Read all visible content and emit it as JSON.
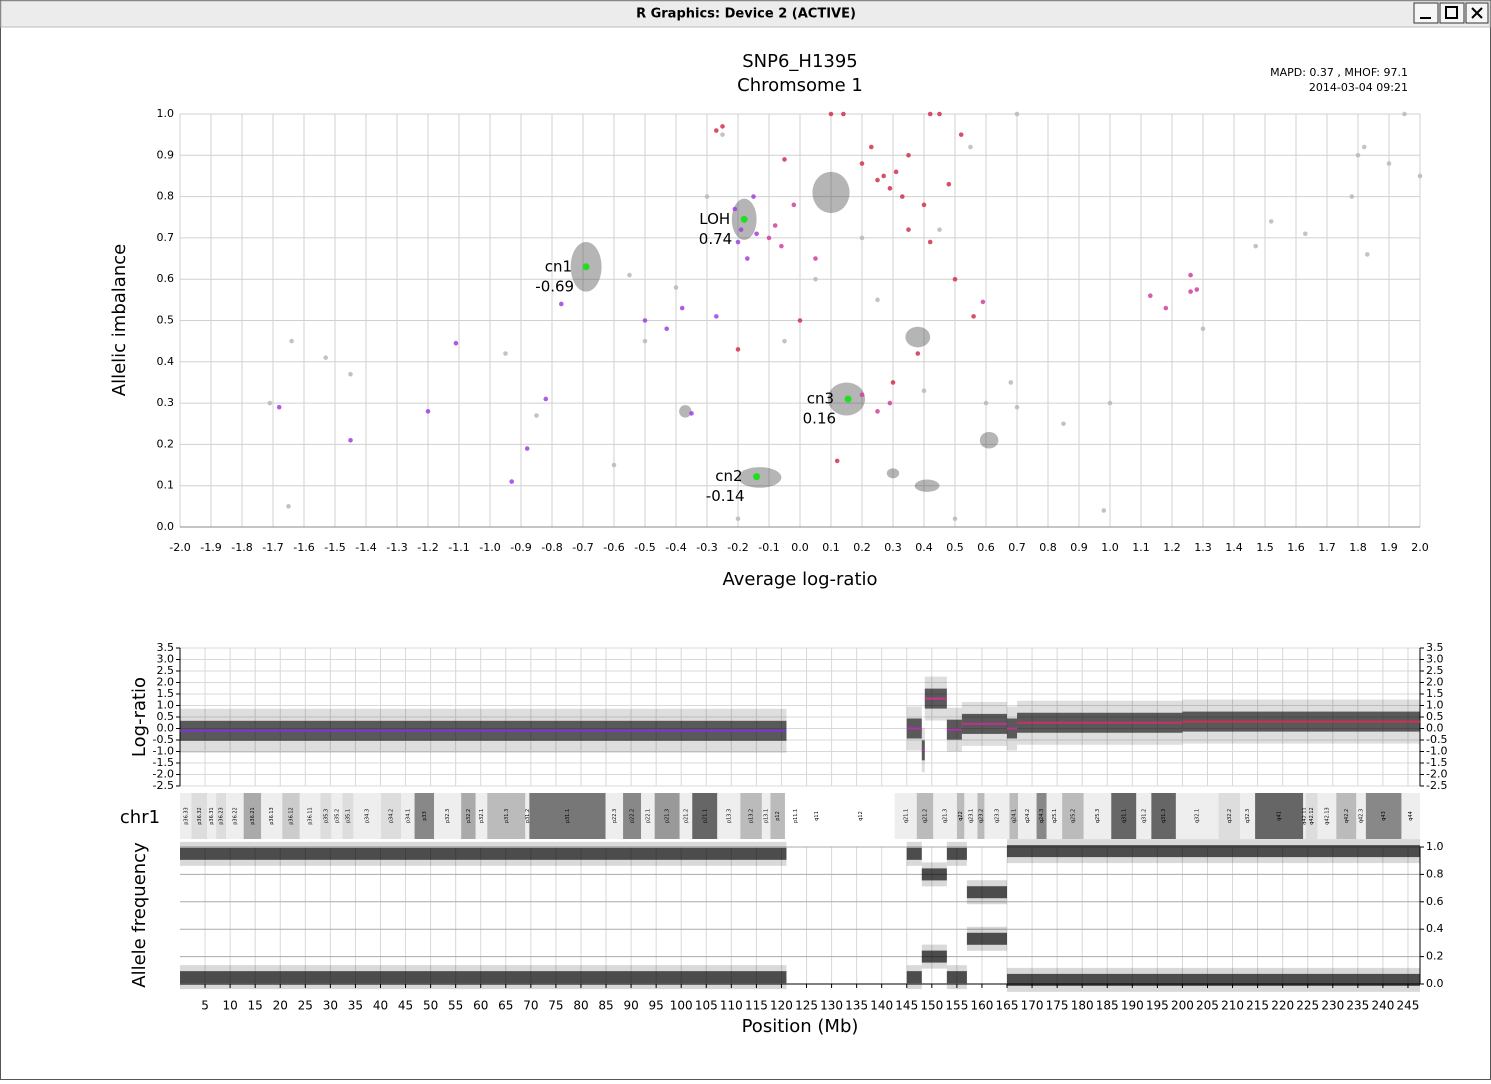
{
  "window": {
    "title": "R Graphics: Device 2 (ACTIVE)"
  },
  "chart_data": [
    {
      "type": "scatter",
      "title": "SNP6_H1395",
      "subtitle": "Chromsome 1",
      "annotations": [
        "MAPD:  0.37 , MHOF:  97.1",
        "2014-03-04 09:21"
      ],
      "x_label": "Average log-ratio",
      "y_label": "Allelic imbalance",
      "xlim": [
        -2,
        2
      ],
      "ylim": [
        0,
        1
      ],
      "grid": true,
      "xticks": [
        {
          "value": -2,
          "label": "-2.0"
        },
        -1.9,
        -1.8,
        -1.7,
        -1.6,
        -1.5,
        -1.4,
        -1.3,
        -1.2,
        -1.1,
        {
          "value": -1,
          "label": "-1.0"
        },
        -0.9,
        -0.8,
        -0.7,
        -0.6,
        -0.5,
        -0.4,
        -0.3,
        -0.2,
        -0.1,
        {
          "value": 0,
          "label": "0.0"
        },
        0.1,
        0.2,
        0.3,
        0.4,
        0.5,
        0.6,
        0.7,
        0.8,
        0.9,
        {
          "value": 1,
          "label": "1.0"
        },
        1.1,
        1.2,
        1.3,
        1.4,
        1.5,
        1.6,
        1.7,
        1.8,
        1.9,
        {
          "value": 2,
          "label": "2.0"
        }
      ],
      "yticks": [
        {
          "value": 0,
          "label": "0.0"
        },
        0.1,
        0.2,
        0.3,
        0.4,
        0.5,
        0.6,
        0.7,
        0.8,
        0.9,
        {
          "value": 1,
          "label": "1.0"
        }
      ],
      "clouds": [
        {
          "x": -0.69,
          "y": 0.63,
          "rx": 0.05,
          "ry": 0.06
        },
        {
          "x": -0.18,
          "y": 0.745,
          "rx": 0.04,
          "ry": 0.05
        },
        {
          "x": -0.13,
          "y": 0.12,
          "rx": 0.07,
          "ry": 0.025
        },
        {
          "x": 0.15,
          "y": 0.31,
          "rx": 0.06,
          "ry": 0.04
        },
        {
          "x": 0.1,
          "y": 0.81,
          "rx": 0.06,
          "ry": 0.05
        },
        {
          "x": 0.38,
          "y": 0.46,
          "rx": 0.04,
          "ry": 0.025
        },
        {
          "x": 0.41,
          "y": 0.1,
          "rx": 0.04,
          "ry": 0.015
        },
        {
          "x": 0.61,
          "y": 0.21,
          "rx": 0.03,
          "ry": 0.02
        },
        {
          "x": -0.37,
          "y": 0.28,
          "rx": 0.02,
          "ry": 0.015
        },
        {
          "x": 0.3,
          "y": 0.13,
          "rx": 0.02,
          "ry": 0.012
        }
      ],
      "series": [
        {
          "color": "#b8b8b8",
          "x": [
            -1.64,
            -1.65,
            -1.53,
            -1.45,
            -1.71,
            -0.4,
            -0.5,
            -0.55,
            -0.3,
            -0.25,
            0.05,
            0.2,
            0.45,
            0.6,
            0.68,
            0.7,
            0.85,
            1,
            1.3,
            1.52,
            1.78,
            1.8,
            1.82,
            1.9,
            1.95,
            2,
            1.63,
            1.83,
            -0.95,
            -0.6,
            -0.2,
            0.5,
            0.98,
            -0.85,
            -0.05,
            0.25,
            0.55,
            0.7,
            1.47,
            0.4
          ],
          "values": [
            0.45,
            0.05,
            0.41,
            0.37,
            0.3,
            0.58,
            0.45,
            0.61,
            0.8,
            0.95,
            0.6,
            0.7,
            0.72,
            0.3,
            0.35,
            0.29,
            0.25,
            0.3,
            0.48,
            0.74,
            0.8,
            0.9,
            0.92,
            0.88,
            1,
            0.85,
            0.71,
            0.66,
            0.42,
            0.15,
            0.02,
            0.02,
            0.04,
            0.27,
            0.45,
            0.55,
            0.92,
            1,
            0.68,
            0.33
          ]
        },
        {
          "color": "#a040e0",
          "x": [
            -1.68,
            -1.45,
            -1.11,
            -1.2,
            -0.93,
            -0.88,
            -0.82,
            -0.77,
            -0.5,
            -0.43,
            -0.38,
            -0.35,
            -0.27,
            -0.2,
            -0.15,
            -0.21,
            -0.17,
            -0.19,
            -0.14
          ],
          "values": [
            0.29,
            0.21,
            0.445,
            0.28,
            0.11,
            0.19,
            0.31,
            0.54,
            0.5,
            0.48,
            0.53,
            0.275,
            0.51,
            0.69,
            0.8,
            0.77,
            0.65,
            0.72,
            0.71
          ]
        },
        {
          "color": "#d040a0",
          "x": [
            -0.1,
            -0.06,
            -0.02,
            0.05,
            0.2,
            0.25,
            0.29,
            1.13,
            1.18,
            1.26,
            1.26,
            1.28,
            0.59,
            -0.08
          ],
          "values": [
            0.7,
            0.68,
            0.78,
            0.65,
            0.32,
            0.28,
            0.3,
            0.56,
            0.53,
            0.61,
            0.57,
            0.575,
            0.545,
            0.73
          ]
        },
        {
          "color": "#d03050",
          "x": [
            -0.27,
            -0.25,
            -0.05,
            0.1,
            0.14,
            0.2,
            0.25,
            0.27,
            0.29,
            0.31,
            0.33,
            0.35,
            0.4,
            0.42,
            0.45,
            0.48,
            0.42,
            0.56,
            0.5,
            0.3,
            0.38,
            0,
            -0.2,
            0.12,
            0.35,
            0.23,
            0.52
          ],
          "values": [
            0.96,
            0.97,
            0.89,
            1,
            1,
            0.88,
            0.84,
            0.85,
            0.82,
            0.86,
            0.8,
            0.9,
            0.78,
            1,
            1,
            0.83,
            0.69,
            0.51,
            0.6,
            0.35,
            0.42,
            0.5,
            0.43,
            0.16,
            0.72,
            0.92,
            0.95
          ]
        }
      ],
      "clusters": [
        {
          "name": "cn1",
          "x": -0.69,
          "y": 0.63,
          "value": -0.69
        },
        {
          "name": "LOH",
          "x": -0.18,
          "y": 0.745,
          "value": 0.74
        },
        {
          "name": "cn3",
          "x": 0.155,
          "y": 0.31,
          "value": 0.16
        },
        {
          "name": "cn2",
          "x": -0.14,
          "y": 0.122,
          "value": -0.14
        }
      ]
    },
    {
      "type": "segments",
      "y_label": "Log-ratio",
      "xlim": [
        0,
        247.4
      ],
      "ylim": [
        -2.5,
        3.5
      ],
      "grid": true,
      "yticks": [
        -2.5,
        {
          "value": -2,
          "label": "-2.0"
        },
        -1.5,
        {
          "value": -1,
          "label": "-1.0"
        },
        -0.5,
        {
          "value": 0,
          "label": "0.0"
        },
        0.5,
        {
          "value": 1,
          "label": "1.0"
        },
        1.5,
        {
          "value": 2,
          "label": "2.0"
        },
        2.5,
        {
          "value": 3,
          "label": "3.0"
        },
        3.5
      ],
      "segments": [
        {
          "start": 0,
          "end": 121,
          "value": -0.1,
          "color": "#8030e0"
        },
        {
          "start": 145,
          "end": 148,
          "value": 0,
          "color": "#b030b0"
        },
        {
          "start": 148,
          "end": 148.6,
          "value": -0.95,
          "color": "#b030b0"
        },
        {
          "start": 148.6,
          "end": 153,
          "value": 1.3,
          "color": "#d03090"
        },
        {
          "start": 153,
          "end": 156,
          "value": -0.05,
          "color": "#b030b0"
        },
        {
          "start": 156,
          "end": 165,
          "value": 0.2,
          "color": "#c03090"
        },
        {
          "start": 165,
          "end": 167,
          "value": 0,
          "color": "#c03090"
        },
        {
          "start": 167,
          "end": 200,
          "value": 0.25,
          "color": "#c8306a"
        },
        {
          "start": 200,
          "end": 247.4,
          "value": 0.3,
          "color": "#d03050"
        }
      ]
    },
    {
      "type": "ideogram",
      "label": "chr1",
      "xlim": [
        0,
        247.4
      ],
      "bands": [
        {
          "name": "p36.33",
          "start": 0,
          "end": 2.3,
          "color": "#eeeeee"
        },
        {
          "name": "p36.32",
          "start": 2.3,
          "end": 5.4,
          "color": "#dddddd"
        },
        {
          "name": "p36.31",
          "start": 5.4,
          "end": 7.2,
          "color": "#eeeeee"
        },
        {
          "name": "p36.23",
          "start": 7.2,
          "end": 9.2,
          "color": "#dddddd"
        },
        {
          "name": "p36.22",
          "start": 9.2,
          "end": 12.7,
          "color": "#eeeeee"
        },
        {
          "name": "p36.21",
          "start": 12.7,
          "end": 16.2,
          "color": "#aaaaaa"
        },
        {
          "name": "p36.13",
          "start": 16.2,
          "end": 20.4,
          "color": "#eeeeee"
        },
        {
          "name": "p36.12",
          "start": 20.4,
          "end": 23.9,
          "color": "#cccccc"
        },
        {
          "name": "p36.11",
          "start": 23.9,
          "end": 28,
          "color": "#eeeeee"
        },
        {
          "name": "p35.3",
          "start": 28,
          "end": 30.2,
          "color": "#dddddd"
        },
        {
          "name": "p35.2",
          "start": 30.2,
          "end": 32.4,
          "color": "#eeeeee"
        },
        {
          "name": "p35.1",
          "start": 32.4,
          "end": 34.6,
          "color": "#dddddd"
        },
        {
          "name": "p34.3",
          "start": 34.6,
          "end": 40.1,
          "color": "#eeeeee"
        },
        {
          "name": "p34.2",
          "start": 40.1,
          "end": 44.1,
          "color": "#dddddd"
        },
        {
          "name": "p34.1",
          "start": 44.1,
          "end": 46.8,
          "color": "#eeeeee"
        },
        {
          "name": "p33",
          "start": 46.8,
          "end": 50.7,
          "color": "#888888"
        },
        {
          "name": "p32.3",
          "start": 50.7,
          "end": 56.1,
          "color": "#eeeeee"
        },
        {
          "name": "p32.2",
          "start": 56.1,
          "end": 59,
          "color": "#aaaaaa"
        },
        {
          "name": "p32.1",
          "start": 59,
          "end": 61.3,
          "color": "#eeeeee"
        },
        {
          "name": "p31.3",
          "start": 61.3,
          "end": 68.9,
          "color": "#bbbbbb"
        },
        {
          "name": "p31.2",
          "start": 68.9,
          "end": 69.7,
          "color": "#eeeeee"
        },
        {
          "name": "p31.1",
          "start": 69.7,
          "end": 84.9,
          "color": "#777777"
        },
        {
          "name": "p22.3",
          "start": 84.9,
          "end": 88.4,
          "color": "#eeeeee"
        },
        {
          "name": "p22.2",
          "start": 88.4,
          "end": 92,
          "color": "#888888"
        },
        {
          "name": "p22.1",
          "start": 92,
          "end": 94.7,
          "color": "#eeeeee"
        },
        {
          "name": "p21.3",
          "start": 94.7,
          "end": 99.7,
          "color": "#999999"
        },
        {
          "name": "p21.2",
          "start": 99.7,
          "end": 102.2,
          "color": "#eeeeee"
        },
        {
          "name": "p21.1",
          "start": 102.2,
          "end": 107.2,
          "color": "#666666"
        },
        {
          "name": "p13.3",
          "start": 107.2,
          "end": 111.8,
          "color": "#eeeeee"
        },
        {
          "name": "p13.2",
          "start": 111.8,
          "end": 116.1,
          "color": "#bbbbbb"
        },
        {
          "name": "p13.1",
          "start": 116.1,
          "end": 117.8,
          "color": "#eeeeee"
        },
        {
          "name": "p12",
          "start": 117.8,
          "end": 120.7,
          "color": "#bbbbbb"
        },
        {
          "name": "p11.1",
          "start": 120.7,
          "end": 125,
          "color": "#ffffff"
        },
        {
          "name": "q11",
          "start": 125,
          "end": 128.9,
          "color": "#ffffff"
        },
        {
          "name": "q12",
          "start": 128.9,
          "end": 142.6,
          "color": "#ffffff"
        },
        {
          "name": "q21.1",
          "start": 142.6,
          "end": 147,
          "color": "#eeeeee"
        },
        {
          "name": "q21.2",
          "start": 147,
          "end": 150.3,
          "color": "#bbbbbb"
        },
        {
          "name": "q21.3",
          "start": 150.3,
          "end": 155,
          "color": "#eeeeee"
        },
        {
          "name": "q22",
          "start": 155,
          "end": 156.5,
          "color": "#bbbbbb"
        },
        {
          "name": "q23.1",
          "start": 156.5,
          "end": 159.1,
          "color": "#eeeeee"
        },
        {
          "name": "q23.2",
          "start": 159.1,
          "end": 160.5,
          "color": "#bbbbbb"
        },
        {
          "name": "q23.3",
          "start": 160.5,
          "end": 165.5,
          "color": "#eeeeee"
        },
        {
          "name": "q24.1",
          "start": 165.5,
          "end": 167.2,
          "color": "#bbbbbb"
        },
        {
          "name": "q24.2",
          "start": 167.2,
          "end": 170.9,
          "color": "#eeeeee"
        },
        {
          "name": "q24.3",
          "start": 170.9,
          "end": 172.9,
          "color": "#888888"
        },
        {
          "name": "q25.1",
          "start": 172.9,
          "end": 176,
          "color": "#eeeeee"
        },
        {
          "name": "q25.2",
          "start": 176,
          "end": 180.3,
          "color": "#bbbbbb"
        },
        {
          "name": "q25.3",
          "start": 180.3,
          "end": 185.8,
          "color": "#eeeeee"
        },
        {
          "name": "q31.1",
          "start": 185.8,
          "end": 190.8,
          "color": "#666666"
        },
        {
          "name": "q31.2",
          "start": 190.8,
          "end": 193.8,
          "color": "#eeeeee"
        },
        {
          "name": "q31.3",
          "start": 193.8,
          "end": 198.7,
          "color": "#666666"
        },
        {
          "name": "q32.1",
          "start": 198.7,
          "end": 207.2,
          "color": "#eeeeee"
        },
        {
          "name": "q32.2",
          "start": 207.2,
          "end": 211.5,
          "color": "#dddddd"
        },
        {
          "name": "q32.3",
          "start": 211.5,
          "end": 214.5,
          "color": "#eeeeee"
        },
        {
          "name": "q41",
          "start": 214.5,
          "end": 224.1,
          "color": "#666666"
        },
        {
          "name": "q42.11",
          "start": 224.1,
          "end": 224.6,
          "color": "#eeeeee"
        },
        {
          "name": "q42.12",
          "start": 224.6,
          "end": 227,
          "color": "#dddddd"
        },
        {
          "name": "q42.13",
          "start": 227,
          "end": 230.7,
          "color": "#eeeeee"
        },
        {
          "name": "q42.2",
          "start": 230.7,
          "end": 234.7,
          "color": "#bbbbbb"
        },
        {
          "name": "q42.3",
          "start": 234.7,
          "end": 236.6,
          "color": "#eeeeee"
        },
        {
          "name": "q43",
          "start": 236.6,
          "end": 243.7,
          "color": "#888888"
        },
        {
          "name": "q44",
          "start": 243.7,
          "end": 247.4,
          "color": "#eeeeee"
        }
      ]
    },
    {
      "type": "bands",
      "y_label": "Allele frequency",
      "x_label": "Position (Mb)",
      "xlim": [
        0,
        247.4
      ],
      "ylim": [
        0,
        1
      ],
      "grid": true,
      "yticks": [
        {
          "value": 0,
          "label": "0.0"
        },
        0.2,
        0.4,
        0.6,
        0.8,
        {
          "value": 1,
          "label": "1.0"
        }
      ],
      "xticks": [
        5,
        10,
        15,
        20,
        25,
        30,
        35,
        40,
        45,
        50,
        55,
        60,
        65,
        70,
        75,
        80,
        85,
        90,
        95,
        100,
        105,
        110,
        115,
        120,
        125,
        130,
        135,
        140,
        145,
        150,
        155,
        160,
        165,
        170,
        175,
        180,
        185,
        190,
        195,
        200,
        205,
        210,
        215,
        220,
        225,
        230,
        235,
        240,
        245
      ],
      "bands": [
        {
          "start": 0,
          "end": 121,
          "value": 0.05
        },
        {
          "start": 0,
          "end": 121,
          "value": 0.95
        },
        {
          "start": 145,
          "end": 148,
          "value": 0.05
        },
        {
          "start": 145,
          "end": 148,
          "value": 0.95
        },
        {
          "start": 148,
          "end": 153,
          "value": 0.2
        },
        {
          "start": 148,
          "end": 153,
          "value": 0.8
        },
        {
          "start": 153,
          "end": 157,
          "value": 0.05
        },
        {
          "start": 153,
          "end": 157,
          "value": 0.95
        },
        {
          "start": 157,
          "end": 165,
          "value": 0.33
        },
        {
          "start": 157,
          "end": 165,
          "value": 0.67
        },
        {
          "start": 165,
          "end": 247.4,
          "value": 0.03
        },
        {
          "start": 165,
          "end": 247.4,
          "value": 0.97
        }
      ]
    }
  ]
}
